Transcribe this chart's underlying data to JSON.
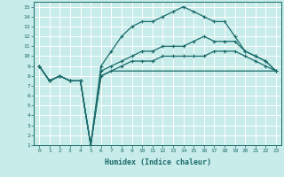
{
  "background_color": "#c8ece9",
  "grid_color": "#ffffff",
  "line_color": "#1a6b6b",
  "xlabel": "Humidex (Indice chaleur)",
  "xlim": [
    -0.5,
    23.5
  ],
  "ylim": [
    1,
    15.5
  ],
  "xticks": [
    0,
    1,
    2,
    3,
    4,
    5,
    6,
    7,
    8,
    9,
    10,
    11,
    12,
    13,
    14,
    15,
    16,
    17,
    18,
    19,
    20,
    21,
    22,
    23
  ],
  "yticks": [
    1,
    2,
    3,
    4,
    5,
    6,
    7,
    8,
    9,
    10,
    11,
    12,
    13,
    14,
    15
  ],
  "line1_no_marker": {
    "x": [
      0,
      1,
      2,
      3,
      4,
      5,
      6,
      7,
      8,
      9,
      10,
      11,
      12,
      13,
      14,
      15,
      16,
      17,
      18,
      19,
      20,
      21,
      22,
      23
    ],
    "y": [
      9,
      7.5,
      8,
      7.5,
      7.5,
      1,
      8,
      8.5,
      8.5,
      8.5,
      8.5,
      8.5,
      8.5,
      8.5,
      8.5,
      8.5,
      8.5,
      8.5,
      8.5,
      8.5,
      8.5,
      8.5,
      8.5,
      8.5
    ]
  },
  "line2_top": {
    "x": [
      0,
      1,
      2,
      3,
      4,
      5,
      6,
      7,
      8,
      9,
      10,
      11,
      12,
      13,
      14,
      15,
      16,
      17,
      18,
      19,
      20,
      21,
      22,
      23
    ],
    "y": [
      9,
      7.5,
      8,
      7.5,
      7.5,
      1,
      9,
      10.5,
      12,
      13,
      13.5,
      13.5,
      14,
      14.5,
      15,
      14.5,
      14,
      13.5,
      13.5,
      12,
      10.5,
      10,
      9.5,
      8.5
    ]
  },
  "line3_mid": {
    "x": [
      0,
      1,
      2,
      3,
      4,
      5,
      6,
      7,
      8,
      9,
      10,
      11,
      12,
      13,
      14,
      15,
      16,
      17,
      18,
      19,
      20,
      21,
      22,
      23
    ],
    "y": [
      9,
      7.5,
      8,
      7.5,
      7.5,
      1,
      8.5,
      9,
      9.5,
      10,
      10.5,
      10.5,
      11,
      11,
      11,
      11.5,
      12,
      11.5,
      11.5,
      11.5,
      10.5,
      10,
      9.5,
      8.5
    ]
  },
  "line4_low": {
    "x": [
      0,
      1,
      2,
      3,
      4,
      5,
      6,
      7,
      8,
      9,
      10,
      11,
      12,
      13,
      14,
      15,
      16,
      17,
      18,
      19,
      20,
      21,
      22,
      23
    ],
    "y": [
      9,
      7.5,
      8,
      7.5,
      7.5,
      1,
      8,
      8.5,
      9,
      9.5,
      9.5,
      9.5,
      10,
      10,
      10,
      10,
      10,
      10.5,
      10.5,
      10.5,
      10,
      9.5,
      9,
      8.5
    ]
  }
}
